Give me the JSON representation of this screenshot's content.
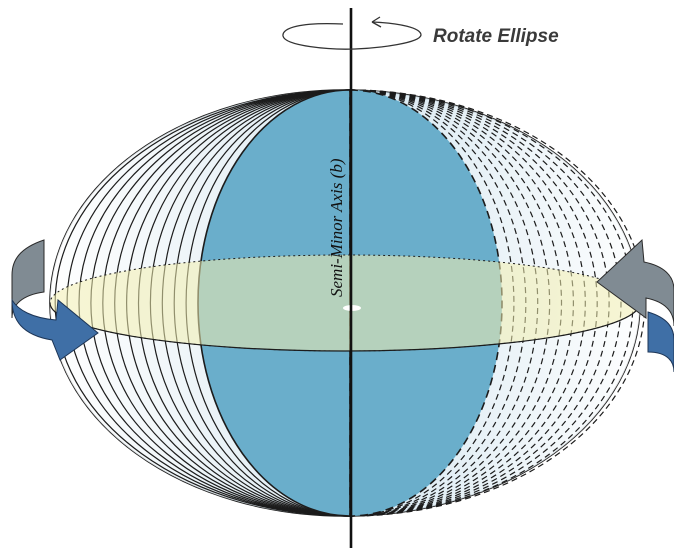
{
  "diagram": {
    "rotate_label": "Rotate Ellipse",
    "axis_label": "Semi-Minor Axis (b)",
    "colors": {
      "meridian_fill": "#6fafc9",
      "equator_fill": "#f3efb4",
      "shading": "#d6e6ef",
      "arrow_blue": "#3f6fa6",
      "arrow_gray": "#7f8a92",
      "line": "#1c1c1c"
    },
    "icons": [
      "rotation-arrow-icon",
      "curved-arrow-left-icon",
      "curved-arrow-right-icon"
    ]
  }
}
